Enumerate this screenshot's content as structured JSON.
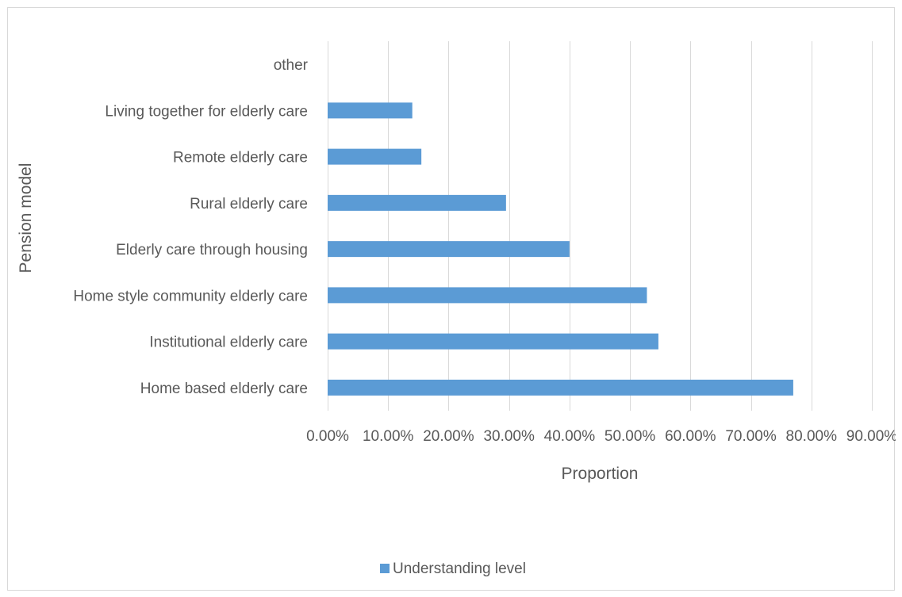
{
  "chart_data": {
    "type": "bar",
    "orientation": "horizontal",
    "categories": [
      "Home based elderly care",
      "Institutional elderly care",
      "Home style community elderly care",
      "Elderly care through housing",
      "Rural elderly care",
      "Remote elderly care",
      "Living together for elderly care",
      "other"
    ],
    "series": [
      {
        "name": "Understanding level",
        "values": [
          0.77,
          0.547,
          0.528,
          0.4,
          0.295,
          0.155,
          0.14,
          0
        ],
        "color": "#5B9BD5"
      }
    ],
    "xlabel": "Proportion",
    "ylabel": "Pension model",
    "xlim": [
      0,
      0.9
    ],
    "xticks": [
      0,
      0.1,
      0.2,
      0.3,
      0.4,
      0.5,
      0.6,
      0.7,
      0.8,
      0.9
    ],
    "xtick_labels": [
      "0.00%",
      "10.00%",
      "20.00%",
      "30.00%",
      "40.00%",
      "50.00%",
      "60.00%",
      "70.00%",
      "80.00%",
      "90.00%"
    ],
    "grid": "vertical",
    "legend": "bottom",
    "gridline_color": "#d9d9d9"
  }
}
